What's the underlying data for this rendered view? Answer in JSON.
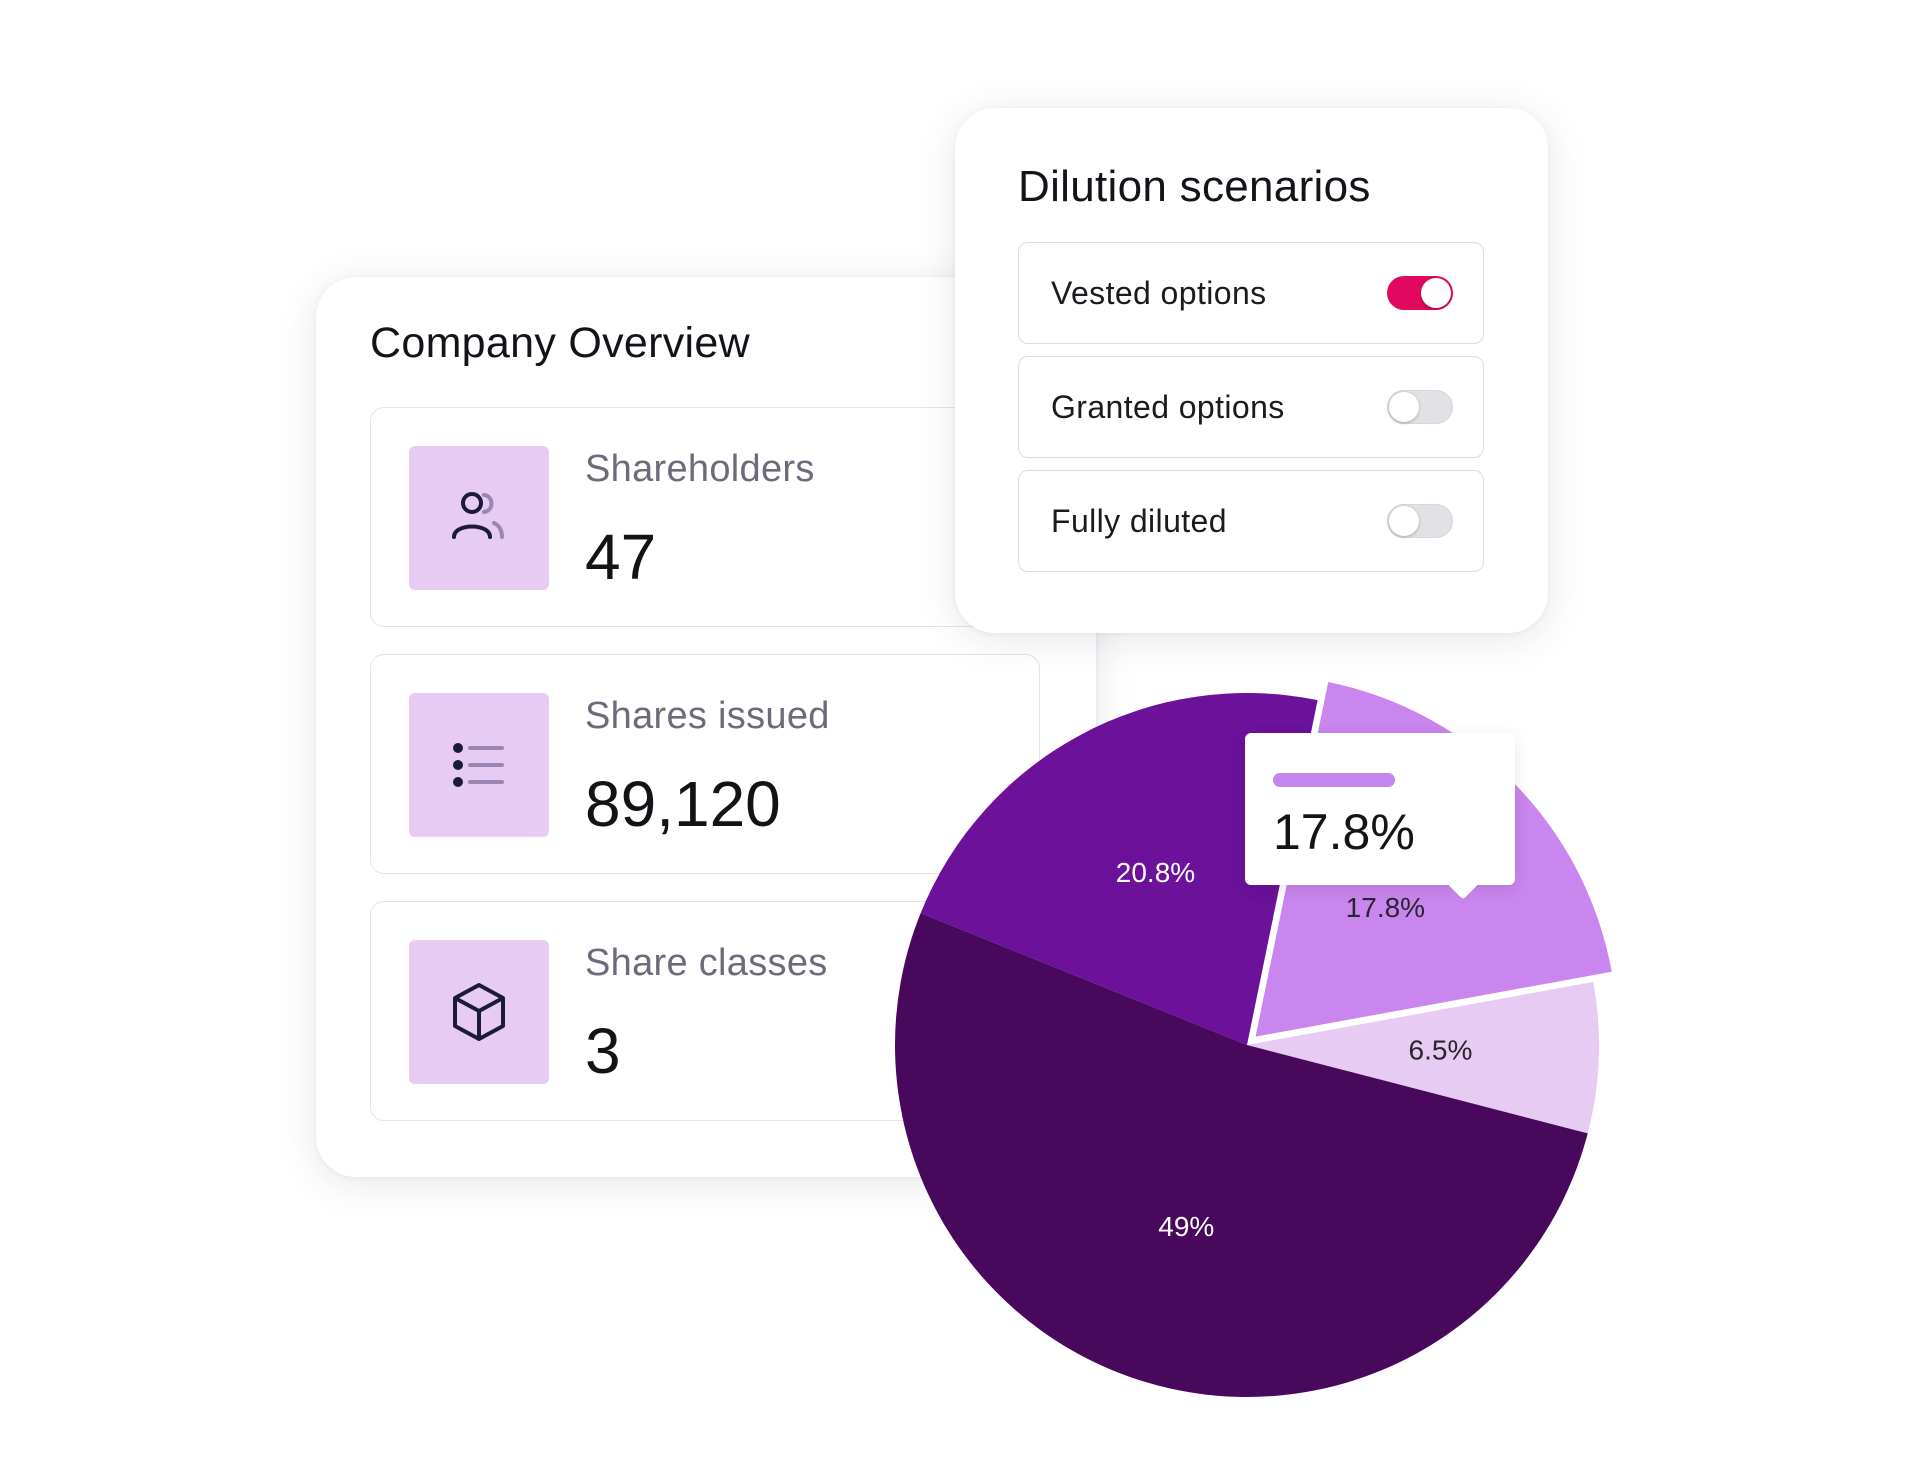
{
  "company_overview": {
    "title": "Company Overview",
    "stats": [
      {
        "label": "Shareholders",
        "value": "47",
        "icon": "users-icon"
      },
      {
        "label": "Shares issued",
        "value": "89,120",
        "icon": "list-icon"
      },
      {
        "label": "Share classes",
        "value": "3",
        "icon": "cube-icon"
      }
    ]
  },
  "dilution": {
    "title": "Dilution scenarios",
    "options": [
      {
        "label": "Vested options",
        "on": true
      },
      {
        "label": "Granted options",
        "on": false
      },
      {
        "label": "Fully diluted",
        "on": false
      }
    ]
  },
  "colors": {
    "accent_toggle": "#e0085f",
    "icon_box": "#e7cbf3"
  },
  "chart_data": {
    "type": "pie",
    "slices": [
      {
        "label": "20.8%",
        "value": 20.8,
        "color": "#6b119a"
      },
      {
        "label": "17.8%",
        "value": 17.8,
        "color": "#c986ee"
      },
      {
        "label": "6.5%",
        "value": 6.5,
        "color": "#e8cbf3"
      },
      {
        "label": "49%",
        "value": 49,
        "color": "#48095d"
      }
    ],
    "tooltip": {
      "value": "17.8%"
    }
  }
}
